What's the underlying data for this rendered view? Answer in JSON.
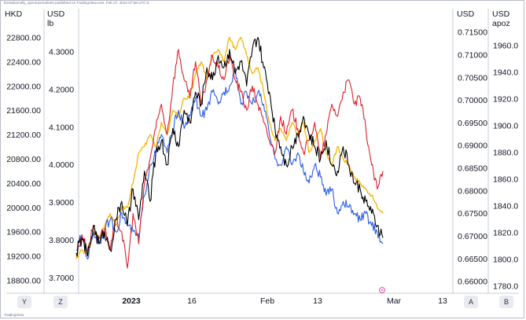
{
  "header": {
    "meta_text": "brentdonnelly_spectraxmarkets published on TradingView.com, Feb 27, 2023 07:59 UTC-5",
    "watermark": "TradingView"
  },
  "axes": {
    "hkd_unit": "HKD",
    "usd_lb_unit": "USD",
    "usd_lb_unit2": "lb",
    "usd_unit": "USD",
    "usd_apoz_unit": "USD",
    "usd_apoz_unit2": "apoz"
  },
  "badges": {
    "left1": "Y",
    "left2": "Z",
    "right1": "A",
    "right2": "B"
  },
  "colors": {
    "black": "#000000",
    "red": "#e0202b",
    "blue": "#2b5ce6",
    "orange": "#f5b400"
  },
  "chart_data": {
    "type": "line",
    "x_ticks": [
      "2023",
      "16",
      "Feb",
      "13",
      "Mar",
      "13"
    ],
    "hkd_axis": {
      "range": [
        18600,
        23000
      ],
      "ticks": [
        "22800.00",
        "22400.00",
        "22000.00",
        "21600.00",
        "21200.00",
        "20800.00",
        "20400.00",
        "20000.00",
        "19600.00",
        "19200.00",
        "18800.00"
      ]
    },
    "usd_lb_axis": {
      "range": [
        3.66,
        4.37
      ],
      "ticks": [
        "4.3000",
        "4.2000",
        "4.1000",
        "4.0000",
        "3.9000",
        "3.8000",
        "3.7000"
      ]
    },
    "usd_axis": {
      "range": [
        0.6575,
        0.7165
      ],
      "ticks": [
        "0.71500",
        "0.71000",
        "0.70500",
        "0.70000",
        "0.69500",
        "0.69000",
        "0.68500",
        "0.68000",
        "0.67500",
        "0.67000",
        "0.66500",
        "0.66000"
      ]
    },
    "usd_apoz_axis": {
      "range": [
        1775,
        1975
      ],
      "ticks": [
        "1960.0",
        "1940.0",
        "1920.0",
        "1900.0",
        "1880.0",
        "1860.0",
        "1840.0",
        "1820.0",
        "1800.0",
        "1780.0"
      ]
    },
    "series": [
      {
        "color": "black",
        "values": [
          [
            0,
            19250
          ],
          [
            4,
            19500
          ],
          [
            8,
            19200
          ],
          [
            12,
            19700
          ],
          [
            16,
            19400
          ],
          [
            20,
            19600
          ],
          [
            24,
            19300
          ],
          [
            28,
            19800
          ],
          [
            32,
            20100
          ],
          [
            36,
            19700
          ],
          [
            40,
            20300
          ],
          [
            44,
            19800
          ],
          [
            48,
            20600
          ],
          [
            52,
            20100
          ],
          [
            56,
            20900
          ],
          [
            60,
            21100
          ],
          [
            64,
            20700
          ],
          [
            68,
            21300
          ],
          [
            72,
            21000
          ],
          [
            76,
            21600
          ],
          [
            80,
            21400
          ],
          [
            84,
            21900
          ],
          [
            88,
            21700
          ],
          [
            92,
            22300
          ],
          [
            96,
            22100
          ],
          [
            100,
            22500
          ],
          [
            104,
            22300
          ],
          [
            108,
            22600
          ],
          [
            112,
            22200
          ],
          [
            116,
            22400
          ],
          [
            120,
            22000
          ],
          [
            124,
            22600
          ],
          [
            128,
            22800
          ],
          [
            132,
            22300
          ],
          [
            136,
            21900
          ],
          [
            140,
            21300
          ],
          [
            144,
            21000
          ],
          [
            148,
            20700
          ],
          [
            152,
            21000
          ],
          [
            156,
            21200
          ],
          [
            160,
            21500
          ],
          [
            164,
            21200
          ],
          [
            168,
            21000
          ],
          [
            172,
            20800
          ],
          [
            176,
            21100
          ],
          [
            180,
            20700
          ],
          [
            184,
            20600
          ],
          [
            188,
            21000
          ],
          [
            192,
            20700
          ],
          [
            196,
            20400
          ],
          [
            200,
            20300
          ],
          [
            204,
            20100
          ],
          [
            208,
            19900
          ],
          [
            212,
            19700
          ],
          [
            216,
            19500
          ]
        ]
      },
      {
        "color": "red",
        "values": [
          [
            0,
            19200
          ],
          [
            4,
            19550
          ],
          [
            8,
            19300
          ],
          [
            12,
            19700
          ],
          [
            16,
            19500
          ],
          [
            20,
            19650
          ],
          [
            24,
            19300
          ],
          [
            28,
            19800
          ],
          [
            32,
            19600
          ],
          [
            36,
            19000
          ],
          [
            40,
            19900
          ],
          [
            44,
            19400
          ],
          [
            48,
            20400
          ],
          [
            52,
            20800
          ],
          [
            56,
            21300
          ],
          [
            60,
            21700
          ],
          [
            64,
            21200
          ],
          [
            68,
            22000
          ],
          [
            72,
            22600
          ],
          [
            76,
            22100
          ],
          [
            80,
            21800
          ],
          [
            84,
            22400
          ],
          [
            88,
            21700
          ],
          [
            92,
            22100
          ],
          [
            96,
            22500
          ],
          [
            100,
            22300
          ],
          [
            104,
            22100
          ],
          [
            108,
            22500
          ],
          [
            112,
            22100
          ],
          [
            116,
            21900
          ],
          [
            120,
            21600
          ],
          [
            124,
            22000
          ],
          [
            128,
            21700
          ],
          [
            132,
            21400
          ],
          [
            136,
            21100
          ],
          [
            140,
            20900
          ],
          [
            144,
            21500
          ],
          [
            148,
            21200
          ],
          [
            152,
            21600
          ],
          [
            156,
            21300
          ],
          [
            160,
            20900
          ],
          [
            164,
            21100
          ],
          [
            168,
            21400
          ],
          [
            172,
            20800
          ],
          [
            176,
            21200
          ],
          [
            180,
            21700
          ],
          [
            184,
            21500
          ],
          [
            188,
            21900
          ],
          [
            192,
            22100
          ],
          [
            196,
            21700
          ],
          [
            200,
            21800
          ],
          [
            204,
            21300
          ],
          [
            208,
            20700
          ],
          [
            212,
            20300
          ],
          [
            216,
            20600
          ]
        ]
      },
      {
        "color": "blue",
        "values": [
          [
            0,
            19300
          ],
          [
            4,
            19550
          ],
          [
            8,
            19150
          ],
          [
            12,
            19600
          ],
          [
            16,
            19400
          ],
          [
            20,
            19650
          ],
          [
            24,
            19800
          ],
          [
            28,
            19600
          ],
          [
            32,
            19900
          ],
          [
            36,
            19700
          ],
          [
            40,
            19600
          ],
          [
            44,
            19500
          ],
          [
            48,
            20200
          ],
          [
            52,
            20700
          ],
          [
            56,
            20900
          ],
          [
            60,
            21200
          ],
          [
            64,
            20900
          ],
          [
            68,
            21300
          ],
          [
            72,
            21600
          ],
          [
            76,
            21300
          ],
          [
            80,
            21500
          ],
          [
            84,
            21800
          ],
          [
            88,
            21500
          ],
          [
            92,
            21600
          ],
          [
            96,
            21900
          ],
          [
            100,
            21700
          ],
          [
            104,
            21900
          ],
          [
            108,
            22000
          ],
          [
            112,
            22300
          ],
          [
            116,
            21700
          ],
          [
            120,
            21900
          ],
          [
            124,
            21700
          ],
          [
            128,
            21900
          ],
          [
            132,
            21700
          ],
          [
            136,
            21200
          ],
          [
            140,
            20800
          ],
          [
            144,
            20700
          ],
          [
            148,
            21000
          ],
          [
            152,
            20700
          ],
          [
            156,
            20900
          ],
          [
            160,
            20600
          ],
          [
            164,
            20400
          ],
          [
            168,
            20700
          ],
          [
            172,
            20500
          ],
          [
            176,
            20200
          ],
          [
            180,
            20300
          ],
          [
            184,
            19900
          ],
          [
            188,
            20100
          ],
          [
            192,
            20000
          ],
          [
            196,
            19900
          ],
          [
            200,
            19800
          ],
          [
            204,
            19900
          ],
          [
            208,
            19700
          ],
          [
            212,
            19600
          ],
          [
            216,
            19400
          ]
        ]
      },
      {
        "color": "orange",
        "values": [
          [
            0,
            19150
          ],
          [
            4,
            19300
          ],
          [
            8,
            19200
          ],
          [
            12,
            19600
          ],
          [
            16,
            19500
          ],
          [
            20,
            19700
          ],
          [
            24,
            19900
          ],
          [
            28,
            19700
          ],
          [
            32,
            20000
          ],
          [
            36,
            20000
          ],
          [
            40,
            20400
          ],
          [
            44,
            20900
          ],
          [
            48,
            21000
          ],
          [
            52,
            21200
          ],
          [
            56,
            21000
          ],
          [
            60,
            21400
          ],
          [
            64,
            21200
          ],
          [
            68,
            21600
          ],
          [
            72,
            21500
          ],
          [
            76,
            21800
          ],
          [
            80,
            21800
          ],
          [
            84,
            22200
          ],
          [
            88,
            22400
          ],
          [
            92,
            22100
          ],
          [
            96,
            22500
          ],
          [
            100,
            22600
          ],
          [
            104,
            22400
          ],
          [
            108,
            22800
          ],
          [
            112,
            22600
          ],
          [
            116,
            22800
          ],
          [
            120,
            22500
          ],
          [
            124,
            22200
          ],
          [
            128,
            22300
          ],
          [
            132,
            21900
          ],
          [
            136,
            21400
          ],
          [
            140,
            21100
          ],
          [
            144,
            21300
          ],
          [
            148,
            21100
          ],
          [
            152,
            21400
          ],
          [
            156,
            21200
          ],
          [
            160,
            21400
          ],
          [
            164,
            20900
          ],
          [
            168,
            21100
          ],
          [
            172,
            21300
          ],
          [
            176,
            20900
          ],
          [
            180,
            20700
          ],
          [
            184,
            21000
          ],
          [
            188,
            20800
          ],
          [
            192,
            20700
          ],
          [
            196,
            20500
          ],
          [
            200,
            20400
          ],
          [
            204,
            20300
          ],
          [
            208,
            20200
          ],
          [
            212,
            20000
          ],
          [
            216,
            19900
          ]
        ]
      }
    ]
  }
}
